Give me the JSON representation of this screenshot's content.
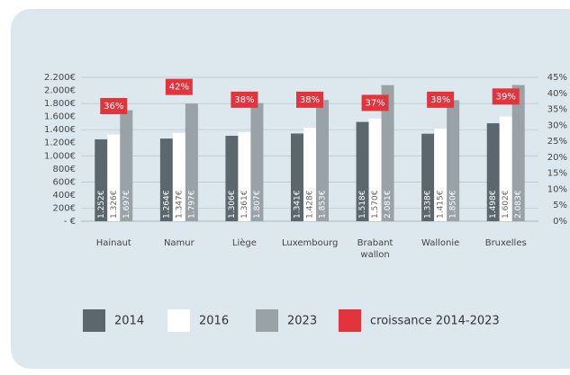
{
  "chart_data": {
    "type": "bar",
    "categories": [
      "Hainaut",
      "Namur",
      "Liège",
      "Luxembourg",
      "Brabant wallon",
      "Wallonie",
      "Bruxelles"
    ],
    "series": [
      {
        "name": "2014",
        "color": "#5b676d",
        "values": [
          1252,
          1264,
          1306,
          1341,
          1518,
          1338,
          1498
        ],
        "value_labels": [
          "1.252€",
          "1.264€",
          "1.306€",
          "1.341€",
          "1.518€",
          "1.338€",
          "1.498€"
        ]
      },
      {
        "name": "2016",
        "color": "#ffffff",
        "values": [
          1326,
          1347,
          1361,
          1428,
          1570,
          1415,
          1602
        ],
        "value_labels": [
          "1.326€",
          "1.347€",
          "1.361€",
          "1.428€",
          "1.570€",
          "1.415€",
          "1.602€"
        ]
      },
      {
        "name": "2023",
        "color": "#99a2a7",
        "values": [
          1697,
          1797,
          1807,
          1853,
          2081,
          1850,
          2083
        ],
        "value_labels": [
          "1.697€",
          "1.797€",
          "1.807€",
          "1.853€",
          "2.081€",
          "1.850€",
          "2.083€"
        ]
      },
      {
        "name": "croissance 2014-2023",
        "color": "#e2343d",
        "axis": "y2",
        "values": [
          36,
          42,
          38,
          38,
          37,
          38,
          39
        ],
        "value_labels": [
          "36%",
          "42%",
          "38%",
          "38%",
          "37%",
          "38%",
          "39%"
        ]
      }
    ],
    "ylim": [
      0,
      2200
    ],
    "yticks": [
      {
        "value": 0,
        "label": "- €"
      },
      {
        "value": 200,
        "label": "200€"
      },
      {
        "value": 400,
        "label": "400€"
      },
      {
        "value": 600,
        "label": "600€"
      },
      {
        "value": 800,
        "label": "800€"
      },
      {
        "value": 1000,
        "label": "1.000€"
      },
      {
        "value": 1200,
        "label": "1.200€"
      },
      {
        "value": 1400,
        "label": "1.400€"
      },
      {
        "value": 1600,
        "label": "1.600€"
      },
      {
        "value": 1800,
        "label": "1.800€"
      },
      {
        "value": 2000,
        "label": "2.000€"
      },
      {
        "value": 2200,
        "label": "2.200€"
      }
    ],
    "y2lim": [
      0,
      45
    ],
    "y2ticks": [
      {
        "value": 0,
        "label": "0%"
      },
      {
        "value": 5,
        "label": "5%"
      },
      {
        "value": 10,
        "label": "10%"
      },
      {
        "value": 15,
        "label": "15%"
      },
      {
        "value": 20,
        "label": "20%"
      },
      {
        "value": 25,
        "label": "25%"
      },
      {
        "value": 30,
        "label": "30%"
      },
      {
        "value": 35,
        "label": "35%"
      },
      {
        "value": 40,
        "label": "40%"
      },
      {
        "value": 45,
        "label": "45%"
      }
    ],
    "grid": true,
    "legend": "bottom"
  }
}
